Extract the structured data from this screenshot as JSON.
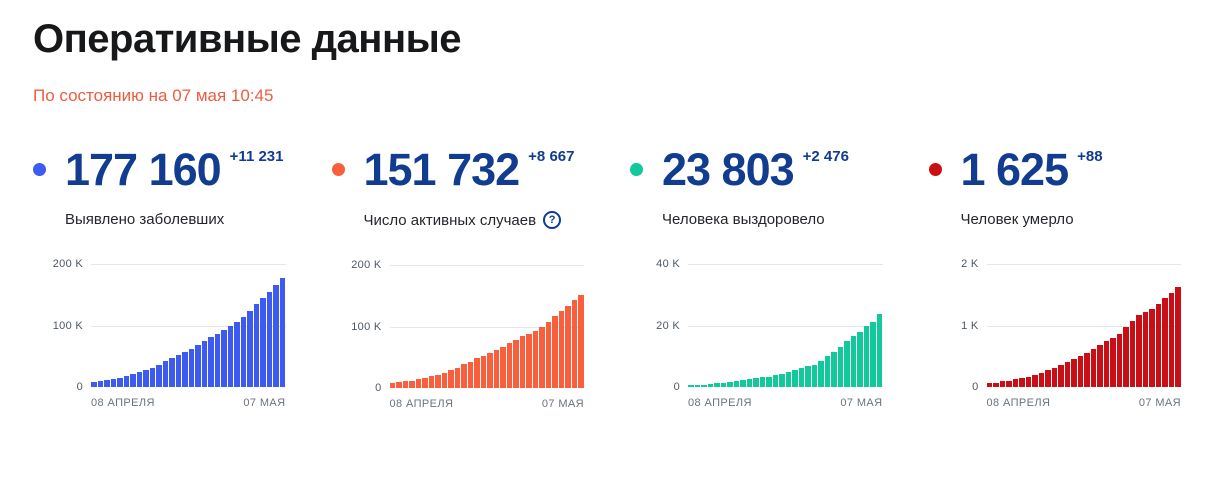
{
  "header": {
    "title": "Оперативные данные",
    "subtitle": "По состоянию на 07 мая 10:45"
  },
  "colors": {
    "number_navy": "#123c8f",
    "subtitle_orange": "#ee5c40",
    "accent_blue": "#3d5af1",
    "accent_orange": "#fa5f3d",
    "accent_teal": "#12c99b",
    "accent_red": "#c90e15"
  },
  "cards": [
    {
      "value": "177 160",
      "delta": "+11 231",
      "label": "Выявлено заболевших",
      "color": "#3d5af1",
      "has_help_icon": false
    },
    {
      "value": "151 732",
      "delta": "+8 667",
      "label": "Число активных случаев",
      "color": "#fa5f3d",
      "has_help_icon": true,
      "help_icon_glyph": "?"
    },
    {
      "value": "23 803",
      "delta": "+2 476",
      "label": "Человека выздоровело",
      "color": "#12c99b",
      "has_help_icon": false
    },
    {
      "value": "1 625",
      "delta": "+88",
      "label": "Человек умерло",
      "color": "#c90e15",
      "has_help_icon": false
    }
  ],
  "chart_data": [
    {
      "type": "bar",
      "title": "Выявлено заболевших",
      "x_start": "08 АПРЕЛЯ",
      "x_end": "07 МАЯ",
      "xtick_labels": [
        "08 АПРЕЛЯ",
        "07 МАЯ"
      ],
      "yticks": [
        "200 K",
        "100 K",
        "0"
      ],
      "ylim": [
        0,
        200000
      ],
      "grid": true,
      "bar_color": "#3d5af1",
      "values": [
        8672,
        10131,
        11917,
        13584,
        15770,
        18328,
        21102,
        24490,
        27938,
        32008,
        36793,
        42853,
        47121,
        52763,
        57999,
        62773,
        68622,
        74588,
        80949,
        87147,
        93558,
        99399,
        106498,
        114431,
        124054,
        134687,
        145268,
        155370,
        165929,
        177160
      ]
    },
    {
      "type": "bar",
      "title": "Число активных случаев",
      "x_start": "08 АПРЕЛЯ",
      "x_end": "07 МАЯ",
      "xtick_labels": [
        "08 АПРЕЛЯ",
        "07 МАЯ"
      ],
      "yticks": [
        "200 K",
        "100 K",
        "0"
      ],
      "ylim": [
        0,
        200000
      ],
      "grid": true,
      "bar_color": "#fa5f3d",
      "values": [
        8029,
        9357,
        11028,
        12433,
        14349,
        16710,
        19238,
        22306,
        25402,
        29145,
        33423,
        39201,
        43270,
        48434,
        53066,
        57327,
        62439,
        67657,
        73435,
        79007,
        84235,
        88141,
        93806,
        100042,
        107819,
        116768,
        125817,
        134054,
        143065,
        151732
      ]
    },
    {
      "type": "bar",
      "title": "Человека выздоровело",
      "x_start": "08 АПРЕЛЯ",
      "x_end": "07 МАЯ",
      "xtick_labels": [
        "08 АПРЕЛЯ",
        "07 МАЯ"
      ],
      "yticks": [
        "40 K",
        "20 K",
        "0"
      ],
      "ylim": [
        0,
        40000
      ],
      "grid": true,
      "bar_color": "#12c99b",
      "values": [
        580,
        698,
        795,
        1045,
        1291,
        1470,
        1694,
        1986,
        2304,
        2590,
        3057,
        3291,
        3446,
        3873,
        4420,
        4891,
        5568,
        6250,
        6767,
        7346,
        8456,
        10286,
        11619,
        13220,
        15013,
        16639,
        18095,
        19865,
        21327,
        23803
      ]
    },
    {
      "type": "bar",
      "title": "Человек умерло",
      "x_start": "08 АПРЕЛЯ",
      "x_end": "07 МАЯ",
      "xtick_labels": [
        "08 АПРЕЛЯ",
        "07 МАЯ"
      ],
      "yticks": [
        "2 K",
        "1 K",
        "0"
      ],
      "ylim": [
        0,
        2000
      ],
      "grid": true,
      "bar_color": "#c90e15",
      "values": [
        63,
        76,
        94,
        106,
        130,
        148,
        170,
        198,
        232,
        273,
        313,
        361,
        405,
        456,
        513,
        555,
        615,
        681,
        747,
        794,
        867,
        972,
        1073,
        1169,
        1222,
        1280,
        1356,
        1451,
        1537,
        1625
      ]
    }
  ]
}
